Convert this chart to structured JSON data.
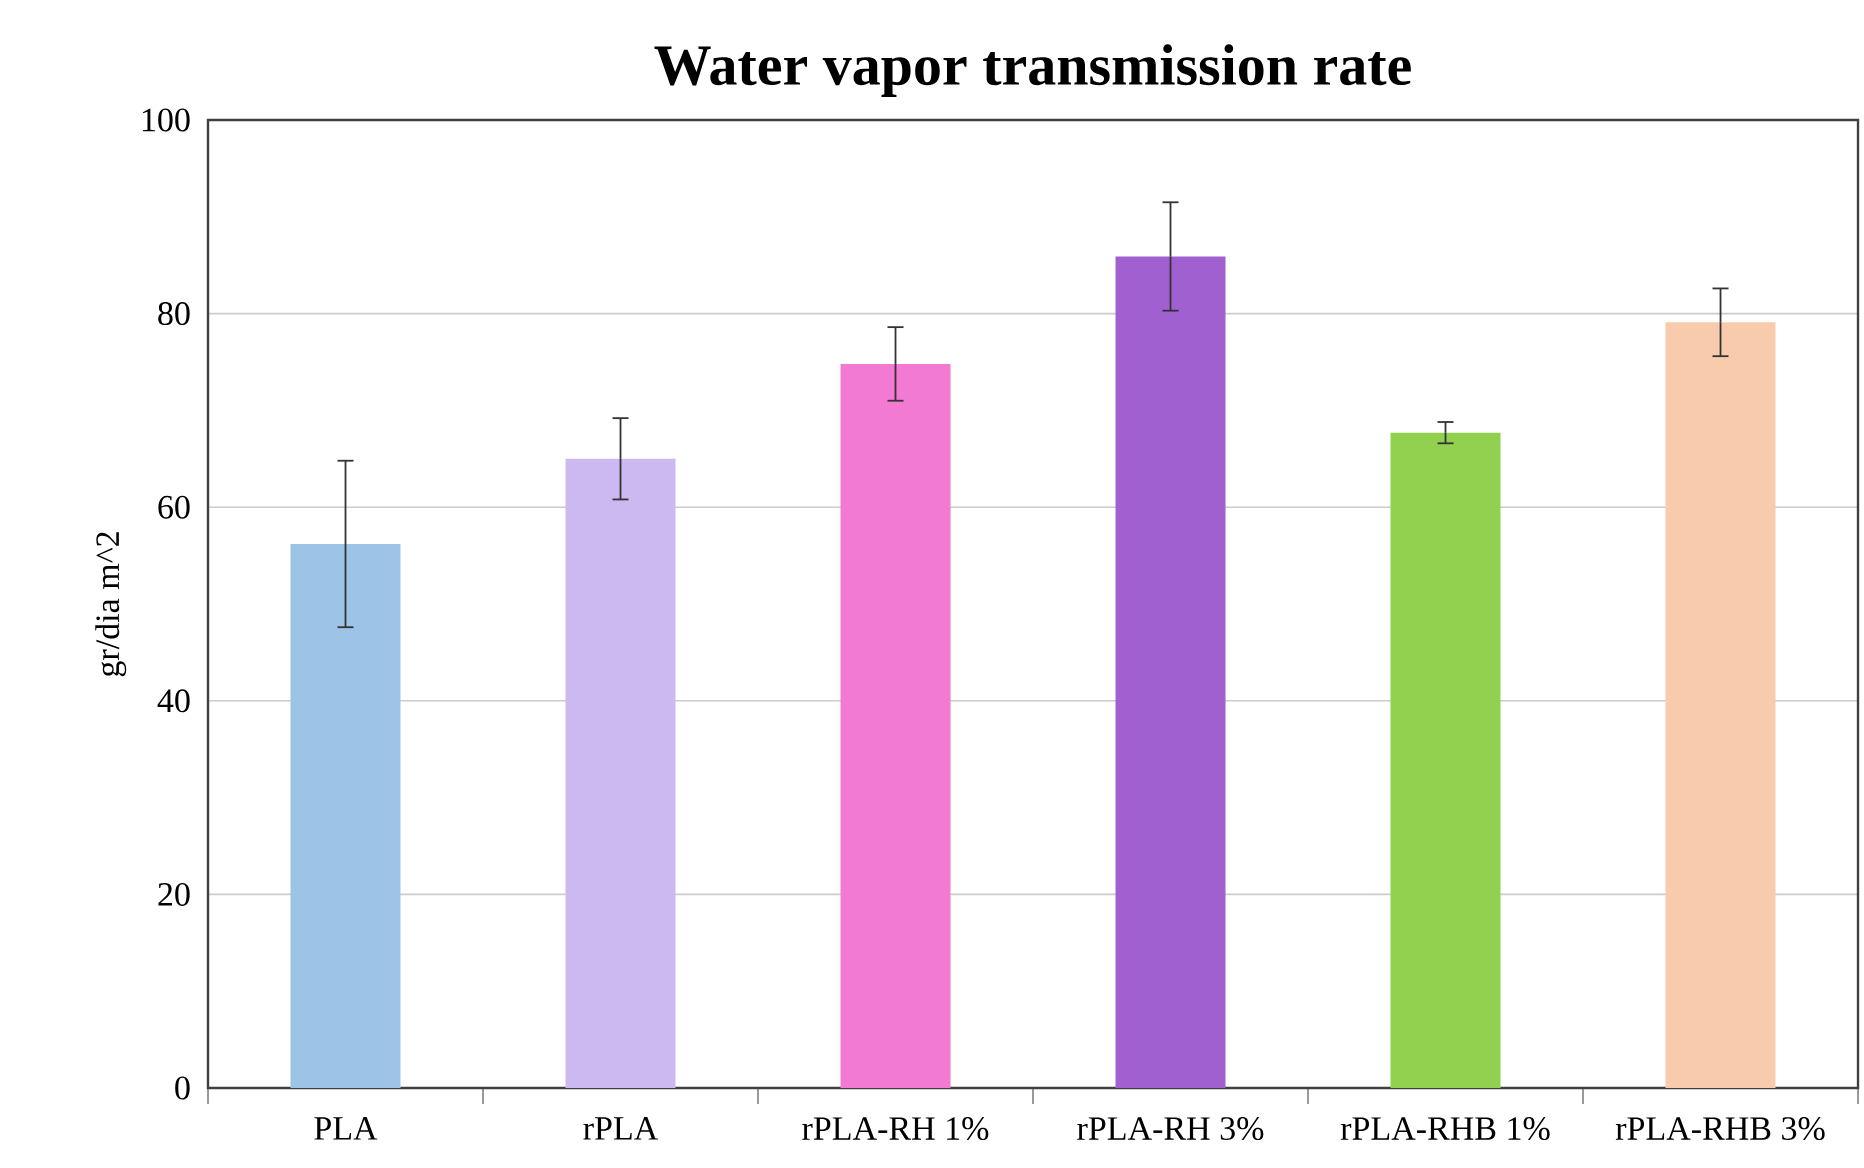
{
  "chart_data": {
    "type": "bar",
    "title": "Water vapor transmission rate",
    "ylabel": "gr/dia m^2",
    "categories": [
      "PLA",
      "rPLA",
      "rPLA-RH 1%",
      "rPLA-RH 3%",
      "rPLA-RHB 1%",
      "rPLA-RHB 3%"
    ],
    "values": [
      56.2,
      65.0,
      74.8,
      85.9,
      67.7,
      79.1
    ],
    "errors": [
      8.6,
      4.2,
      3.8,
      5.6,
      1.1,
      3.5
    ],
    "colors": [
      "#9dc3e6",
      "#cdb9f2",
      "#f27ad2",
      "#a060cf",
      "#92d050",
      "#f8cbad"
    ],
    "ylim": [
      0,
      100
    ],
    "yticks": [
      0,
      20,
      40,
      60,
      80,
      100
    ],
    "grid": "y"
  }
}
